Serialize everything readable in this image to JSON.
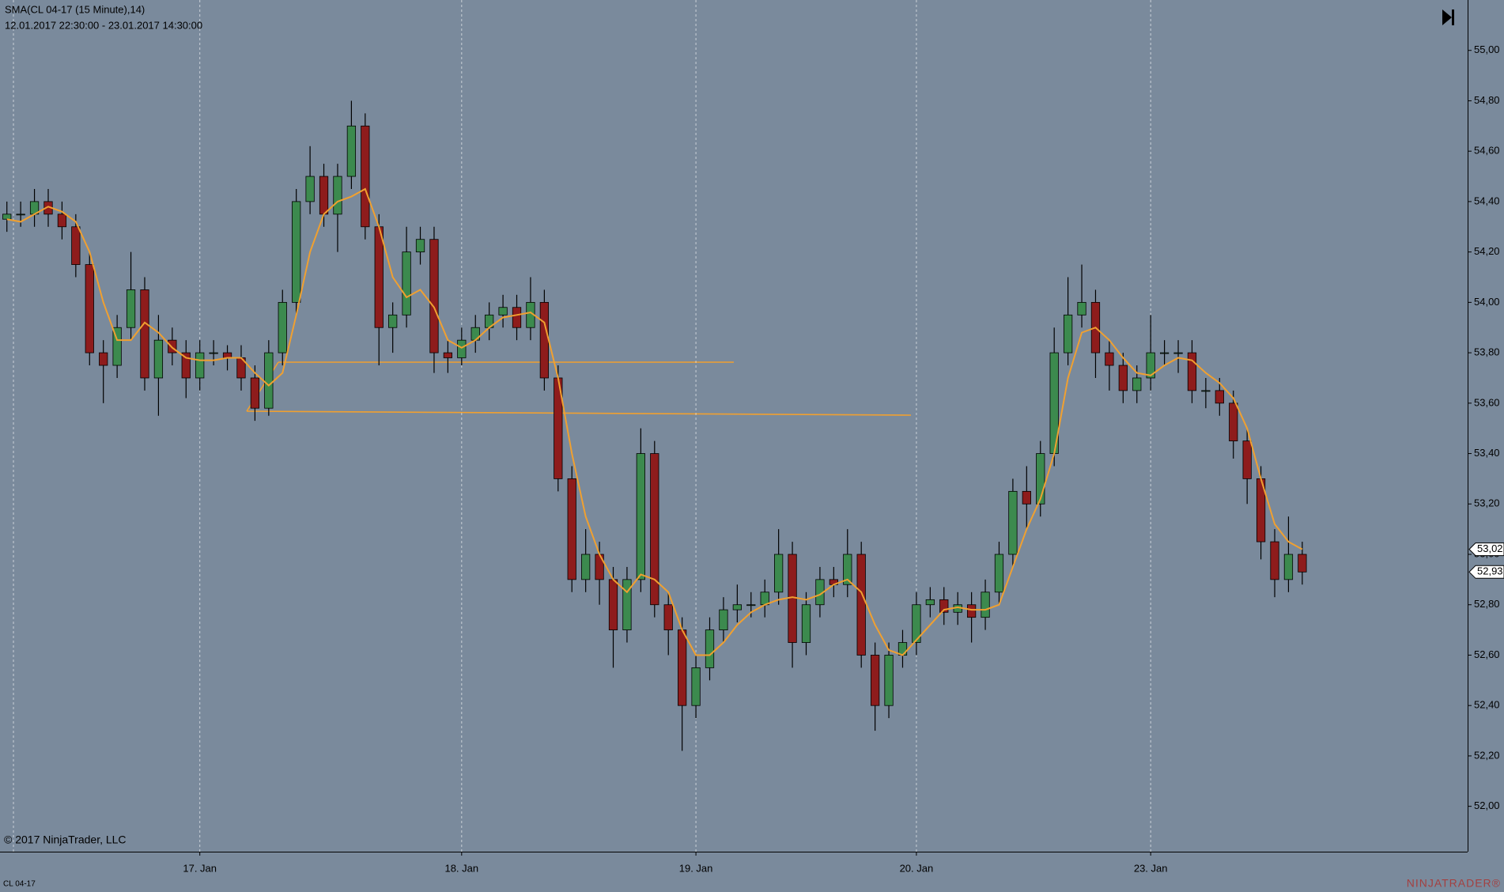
{
  "chart_data": {
    "type": "candlestick",
    "title": "SMA(CL 04-17 (15 Minute),14)",
    "subtitle": "12.01.2017 22:30:00 - 23.01.2017 14:30:00",
    "copyright": "© 2017 NinjaTrader, LLC",
    "instrument": "CL 04-17",
    "brand": "NINJATRADER®",
    "up_color": "#3c8a4e",
    "down_color": "#8e1c1c",
    "open": [
      54.33,
      54.35,
      54.35,
      54.4,
      54.35,
      54.3,
      54.15,
      53.8,
      53.75,
      53.9,
      54.05,
      53.7,
      53.85,
      53.8,
      53.7,
      53.8,
      53.8,
      53.78,
      53.7,
      53.58,
      53.8,
      54.0,
      54.4,
      54.5,
      54.35,
      54.5,
      54.7,
      54.3,
      53.9,
      53.95,
      54.2,
      54.25,
      53.8,
      53.78,
      53.85,
      53.9,
      53.95,
      53.98,
      53.9,
      54.0,
      53.7,
      53.3,
      52.9,
      53.0,
      52.9,
      52.7,
      52.9,
      53.4,
      52.8,
      52.7,
      52.4,
      52.55,
      52.7,
      52.78,
      52.8,
      52.8,
      52.85,
      53.0,
      52.65,
      52.8,
      52.9,
      52.88,
      53.0,
      52.6,
      52.4,
      52.6,
      52.65,
      52.8,
      52.82,
      52.77,
      52.8,
      52.75,
      52.85,
      53.0,
      53.25,
      53.2,
      53.4,
      53.8,
      53.95,
      54.0,
      53.8,
      53.75,
      53.65,
      53.7,
      53.8,
      53.8,
      53.8,
      53.65,
      53.65,
      53.6,
      53.45,
      53.3,
      53.05,
      52.9,
      53.0
    ],
    "high": [
      54.4,
      54.4,
      54.45,
      54.45,
      54.4,
      54.35,
      54.2,
      53.85,
      53.95,
      54.2,
      54.1,
      53.95,
      53.9,
      53.85,
      53.85,
      53.85,
      53.83,
      53.83,
      53.75,
      53.85,
      54.05,
      54.45,
      54.62,
      54.55,
      54.55,
      54.8,
      54.75,
      54.35,
      54.0,
      54.3,
      54.3,
      54.3,
      53.85,
      53.9,
      53.95,
      54.0,
      54.03,
      54.03,
      54.1,
      54.05,
      53.75,
      53.35,
      53.1,
      53.05,
      52.95,
      52.95,
      53.5,
      53.45,
      52.85,
      52.75,
      52.6,
      52.75,
      52.83,
      52.88,
      52.85,
      52.9,
      53.1,
      53.05,
      52.85,
      52.95,
      52.95,
      53.1,
      53.05,
      52.65,
      52.65,
      52.7,
      52.85,
      52.87,
      52.87,
      52.85,
      52.85,
      52.9,
      53.05,
      53.3,
      53.35,
      53.45,
      53.9,
      54.1,
      54.15,
      54.05,
      53.85,
      53.8,
      53.75,
      53.95,
      53.85,
      53.85,
      53.85,
      53.7,
      53.7,
      53.65,
      53.5,
      53.35,
      53.1,
      53.15,
      53.05
    ],
    "low": [
      54.28,
      54.3,
      54.3,
      54.3,
      54.25,
      54.1,
      53.75,
      53.6,
      53.7,
      53.85,
      53.65,
      53.55,
      53.75,
      53.62,
      53.65,
      53.75,
      53.73,
      53.65,
      53.53,
      53.55,
      53.75,
      53.95,
      54.35,
      54.3,
      54.2,
      54.45,
      54.25,
      53.75,
      53.8,
      53.9,
      54.15,
      53.72,
      53.72,
      53.75,
      53.8,
      53.85,
      53.9,
      53.85,
      53.85,
      53.65,
      53.25,
      52.85,
      52.85,
      52.8,
      52.55,
      52.65,
      52.85,
      52.75,
      52.6,
      52.22,
      52.35,
      52.5,
      52.65,
      52.73,
      52.75,
      52.75,
      52.8,
      52.55,
      52.6,
      52.75,
      52.83,
      52.83,
      52.55,
      52.3,
      52.35,
      52.55,
      52.6,
      52.75,
      52.72,
      52.72,
      52.65,
      52.7,
      52.8,
      52.95,
      53.1,
      53.15,
      53.35,
      53.75,
      53.9,
      53.7,
      53.65,
      53.6,
      53.6,
      53.65,
      53.75,
      53.72,
      53.6,
      53.58,
      53.55,
      53.38,
      53.2,
      52.98,
      52.83,
      52.85,
      52.88
    ],
    "close": [
      54.35,
      54.35,
      54.4,
      54.35,
      54.3,
      54.15,
      53.8,
      53.75,
      53.9,
      54.05,
      53.7,
      53.85,
      53.8,
      53.7,
      53.8,
      53.8,
      53.78,
      53.7,
      53.58,
      53.8,
      54.0,
      54.4,
      54.5,
      54.35,
      54.5,
      54.7,
      54.3,
      53.9,
      53.95,
      54.2,
      54.25,
      53.8,
      53.78,
      53.85,
      53.9,
      53.95,
      53.98,
      53.9,
      54.0,
      53.7,
      53.3,
      52.9,
      53.0,
      52.9,
      52.7,
      52.9,
      53.4,
      52.8,
      52.7,
      52.4,
      52.55,
      52.7,
      52.78,
      52.8,
      52.8,
      52.85,
      53.0,
      52.65,
      52.8,
      52.9,
      52.88,
      53.0,
      52.6,
      52.4,
      52.6,
      52.65,
      52.8,
      52.82,
      52.77,
      52.8,
      52.75,
      52.85,
      53.0,
      53.25,
      53.2,
      53.4,
      53.8,
      53.95,
      54.0,
      53.8,
      53.75,
      53.65,
      53.7,
      53.8,
      53.8,
      53.8,
      53.65,
      53.65,
      53.6,
      53.45,
      53.3,
      53.05,
      52.9,
      53.0,
      52.93
    ],
    "sma": {
      "color": "#f0a030",
      "values": [
        54.33,
        54.32,
        54.35,
        54.38,
        54.36,
        54.32,
        54.2,
        54.0,
        53.85,
        53.85,
        53.92,
        53.88,
        53.82,
        53.78,
        53.77,
        53.77,
        53.78,
        53.78,
        53.72,
        53.67,
        53.72,
        53.95,
        54.2,
        54.35,
        54.4,
        54.42,
        54.45,
        54.3,
        54.1,
        54.02,
        54.05,
        53.98,
        53.85,
        53.82,
        53.85,
        53.9,
        53.94,
        53.95,
        53.96,
        53.92,
        53.7,
        53.4,
        53.15,
        53.0,
        52.9,
        52.85,
        52.92,
        52.9,
        52.85,
        52.7,
        52.6,
        52.6,
        52.65,
        52.72,
        52.77,
        52.8,
        52.82,
        52.83,
        52.82,
        52.84,
        52.88,
        52.9,
        52.85,
        52.72,
        52.62,
        52.6,
        52.66,
        52.72,
        52.78,
        52.79,
        52.78,
        52.78,
        52.8,
        52.95,
        53.1,
        53.22,
        53.4,
        53.7,
        53.88,
        53.9,
        53.85,
        53.78,
        53.72,
        53.71,
        53.75,
        53.78,
        53.77,
        53.72,
        53.68,
        53.62,
        53.5,
        53.3,
        53.12,
        53.05,
        53.02
      ]
    },
    "price_markers": [
      {
        "value": 53.02,
        "label": "53,02"
      },
      {
        "value": 52.93,
        "label": "52,93"
      }
    ],
    "xlim": [
      -0.5,
      106
    ],
    "xticks": [
      {
        "value": 14,
        "label": "17. Jan"
      },
      {
        "value": 33,
        "label": "18. Jan"
      },
      {
        "value": 50,
        "label": "19. Jan"
      },
      {
        "value": 66,
        "label": "20. Jan"
      },
      {
        "value": 83,
        "label": "23. Jan"
      }
    ],
    "ylim": [
      51.82,
      55.2
    ],
    "yticks": [
      {
        "value": 52,
        "label": "52,00"
      },
      {
        "value": 52.2,
        "label": "52,20"
      },
      {
        "value": 52.4,
        "label": "52,40"
      },
      {
        "value": 52.6,
        "label": "52,60"
      },
      {
        "value": 52.8,
        "label": "52,80"
      },
      {
        "value": 53,
        "label": "53,00"
      },
      {
        "value": 53.2,
        "label": "53,20"
      },
      {
        "value": 53.4,
        "label": "53,40"
      },
      {
        "value": 53.6,
        "label": "53,60"
      },
      {
        "value": 53.8,
        "label": "53,80"
      },
      {
        "value": 54,
        "label": "54,00"
      },
      {
        "value": 54.2,
        "label": "54,20"
      },
      {
        "value": 54.4,
        "label": "54,40"
      },
      {
        "value": 54.6,
        "label": "54,60"
      },
      {
        "value": 54.8,
        "label": "54,80"
      },
      {
        "value": 55,
        "label": "55,00"
      }
    ],
    "grid": true
  }
}
